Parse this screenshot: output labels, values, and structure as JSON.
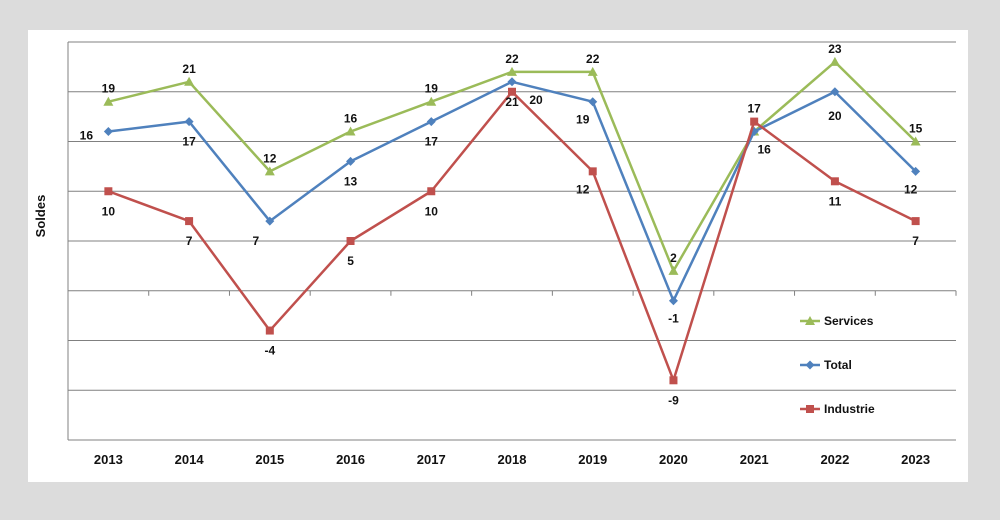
{
  "chart_data": {
    "type": "line",
    "ylabel": "Soldes",
    "xlabel": "",
    "ylim": [
      -15,
      25
    ],
    "grid": true,
    "legend_position": "right",
    "x": [
      "2013",
      "2014",
      "2015",
      "2016",
      "2017",
      "2018",
      "2019",
      "2020",
      "2021",
      "2022",
      "2023"
    ],
    "series": [
      {
        "name": "Services",
        "color": "#9bbb59",
        "marker": "triangle",
        "values": [
          19,
          21,
          12,
          16,
          19,
          22,
          22,
          2,
          16,
          23,
          15
        ]
      },
      {
        "name": "Total",
        "color": "#4f81bd",
        "marker": "diamond",
        "values": [
          16,
          17,
          7,
          13,
          17,
          21,
          19,
          -1,
          16,
          20,
          12
        ]
      },
      {
        "name": "Industrie",
        "color": "#c0504d",
        "marker": "square",
        "values": [
          10,
          7,
          -4,
          5,
          10,
          20,
          12,
          -9,
          17,
          11,
          7
        ]
      }
    ]
  }
}
